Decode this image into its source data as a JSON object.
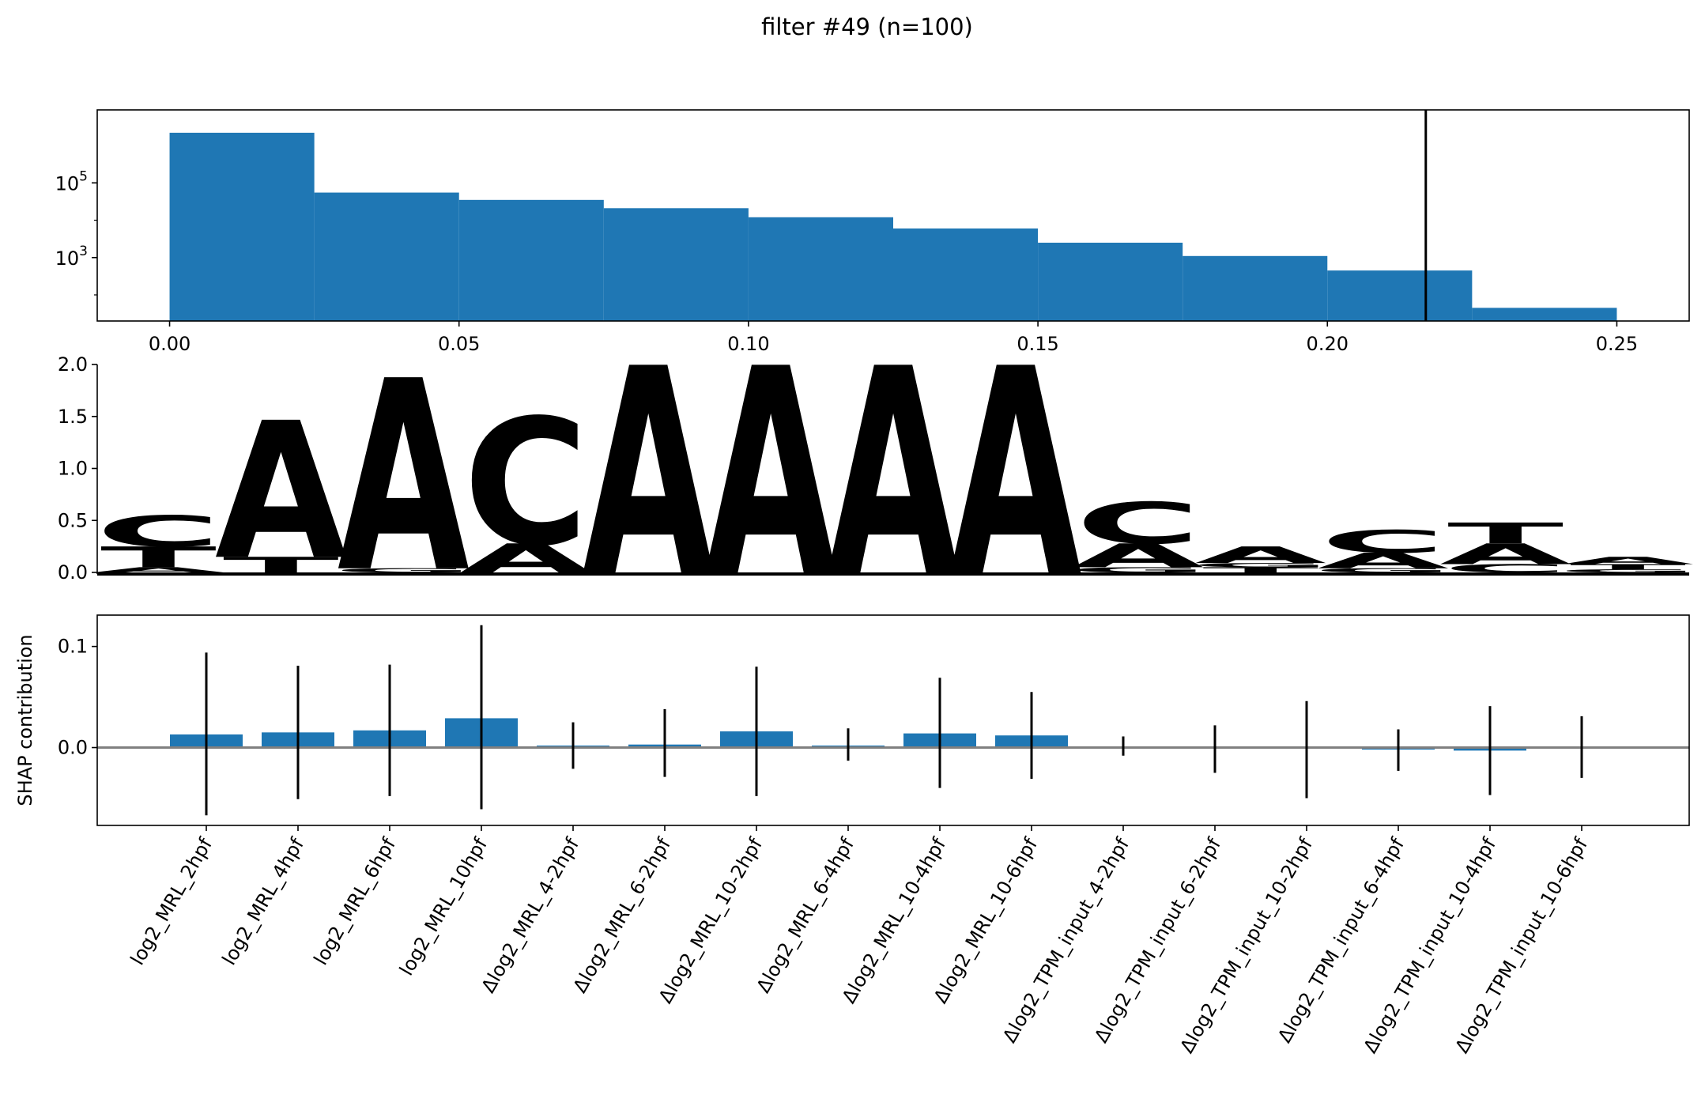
{
  "figure": {
    "title": "filter #49 (n=100)"
  },
  "colors": {
    "bar": "#1f77b4",
    "A": "#109648",
    "C": "#255c99",
    "G": "#f7b32b",
    "T": "#d62839",
    "zero_line": "#808080",
    "threshold_line": "#000000"
  },
  "chart_data": [
    {
      "type": "bar",
      "name": "activation histogram",
      "log_y": true,
      "bin_edges": [
        0.0,
        0.025,
        0.05,
        0.075,
        0.1,
        0.125,
        0.15,
        0.175,
        0.2,
        0.225,
        0.25
      ],
      "counts": [
        2200000,
        55000,
        35000,
        21000,
        12000,
        6000,
        2500,
        1100,
        450,
        45
      ],
      "threshold": 0.217,
      "xlim": [
        -0.0125,
        0.2625
      ],
      "ylim": [
        20,
        9000000
      ],
      "xticks": [
        0.0,
        0.05,
        0.1,
        0.15,
        0.2,
        0.25
      ],
      "xtick_labels": [
        "0.00",
        "0.05",
        "0.10",
        "0.15",
        "0.20",
        "0.25"
      ],
      "yticks": [
        {
          "value": 100000,
          "base": "10",
          "exp": "5"
        },
        {
          "value": 1000,
          "base": "10",
          "exp": "3"
        }
      ]
    },
    {
      "type": "sequence_logo",
      "ylim": [
        0,
        2.0
      ],
      "yticks": [
        "0.0",
        "0.5",
        "1.0",
        "1.5",
        "2.0"
      ],
      "positions": [
        [
          {
            "letter": "A",
            "h": 0.05
          },
          {
            "letter": "T",
            "h": 0.2
          },
          {
            "letter": "C",
            "h": 0.3
          }
        ],
        [
          {
            "letter": "T",
            "h": 0.15
          },
          {
            "letter": "A",
            "h": 1.32
          }
        ],
        [
          {
            "letter": "G",
            "h": 0.04
          },
          {
            "letter": "A",
            "h": 1.84
          }
        ],
        [
          {
            "letter": "A",
            "h": 0.28
          },
          {
            "letter": "C",
            "h": 1.22
          }
        ],
        [
          {
            "letter": "A",
            "h": 2.0
          }
        ],
        [
          {
            "letter": "A",
            "h": 2.0
          }
        ],
        [
          {
            "letter": "A",
            "h": 2.0
          }
        ],
        [
          {
            "letter": "A",
            "h": 2.0
          }
        ],
        [
          {
            "letter": "G",
            "h": 0.05
          },
          {
            "letter": "A",
            "h": 0.23
          },
          {
            "letter": "C",
            "h": 0.4
          }
        ],
        [
          {
            "letter": "T",
            "h": 0.05
          },
          {
            "letter": "G",
            "h": 0.04
          },
          {
            "letter": "A",
            "h": 0.16
          }
        ],
        [
          {
            "letter": "G",
            "h": 0.04
          },
          {
            "letter": "A",
            "h": 0.15
          },
          {
            "letter": "C",
            "h": 0.22
          }
        ],
        [
          {
            "letter": "C",
            "h": 0.08
          },
          {
            "letter": "A",
            "h": 0.2
          },
          {
            "letter": "T",
            "h": 0.2
          }
        ],
        [
          {
            "letter": "G",
            "h": 0.03
          },
          {
            "letter": "T",
            "h": 0.05
          },
          {
            "letter": "A",
            "h": 0.07
          }
        ]
      ]
    },
    {
      "type": "bar",
      "name": "SHAP contributions",
      "ylabel": "SHAP contribution",
      "ylim": [
        -0.077,
        0.131
      ],
      "yticks": [
        0.0,
        0.1
      ],
      "ytick_labels": [
        "0.0",
        "0.1"
      ],
      "categories": [
        "log2_MRL_2hpf",
        "log2_MRL_4hpf",
        "log2_MRL_6hpf",
        "log2_MRL_10hpf",
        "Δlog2_MRL_4-2hpf",
        "Δlog2_MRL_6-2hpf",
        "Δlog2_MRL_10-2hpf",
        "Δlog2_MRL_6-4hpf",
        "Δlog2_MRL_10-4hpf",
        "Δlog2_MRL_10-6hpf",
        "Δlog2_TPM_input_4-2hpf",
        "Δlog2_TPM_input_6-2hpf",
        "Δlog2_TPM_input_10-2hpf",
        "Δlog2_TPM_input_6-4hpf",
        "Δlog2_TPM_input_10-4hpf",
        "Δlog2_TPM_input_10-6hpf"
      ],
      "values": [
        0.013,
        0.015,
        0.017,
        0.029,
        0.002,
        0.003,
        0.016,
        0.002,
        0.014,
        0.012,
        0.0,
        0.0,
        0.0,
        -0.002,
        -0.003,
        0.0
      ],
      "err_lo": [
        -0.067,
        -0.051,
        -0.048,
        -0.061,
        -0.021,
        -0.029,
        -0.048,
        -0.013,
        -0.04,
        -0.031,
        -0.008,
        -0.025,
        -0.05,
        -0.023,
        -0.047,
        -0.03
      ],
      "err_hi": [
        0.094,
        0.081,
        0.082,
        0.121,
        0.025,
        0.038,
        0.08,
        0.019,
        0.069,
        0.055,
        0.011,
        0.022,
        0.046,
        0.018,
        0.041,
        0.031
      ]
    }
  ]
}
